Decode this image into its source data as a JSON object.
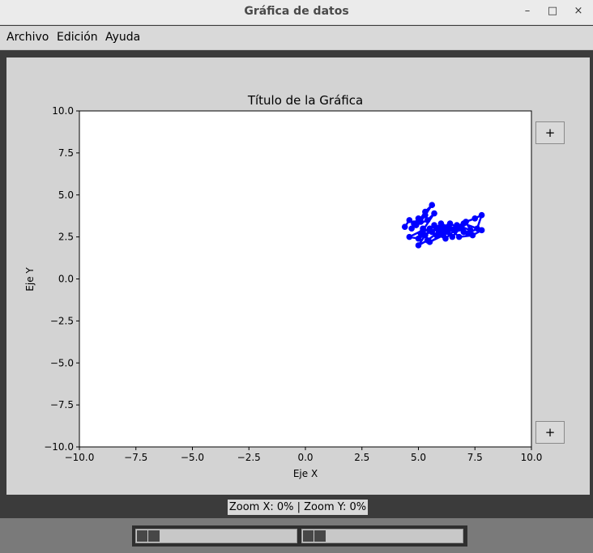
{
  "window": {
    "title": "Gráfica de datos",
    "controls": {
      "minimize": "–",
      "maximize": "□",
      "close": "×"
    }
  },
  "menu": [
    {
      "label": "Archivo"
    },
    {
      "label": "Edición"
    },
    {
      "label": "Ayuda"
    }
  ],
  "side_buttons": {
    "top_label": "+",
    "bottom_label": "+"
  },
  "status": {
    "text": "Zoom X: 0% | Zoom Y: 0%"
  },
  "sliders": [
    {
      "name": "zoom-x",
      "value_percent": 0
    },
    {
      "name": "zoom-y",
      "value_percent": 0
    }
  ],
  "chart_data": {
    "type": "line",
    "title": "Título de la Gráfica",
    "xlabel": "Eje X",
    "ylabel": "Eje Y",
    "xlim": [
      -10,
      10
    ],
    "ylim": [
      -10,
      10
    ],
    "xticks": [
      -10,
      -7.5,
      -5,
      -2.5,
      0,
      2.5,
      5,
      7.5,
      10
    ],
    "yticks": [
      -10,
      -7.5,
      -5,
      -2.5,
      0,
      2.5,
      5,
      7.5,
      10
    ],
    "xtick_labels": [
      "−10.0",
      "−7.5",
      "−5.0",
      "−2.5",
      "0.0",
      "2.5",
      "5.0",
      "7.5",
      "10.0"
    ],
    "ytick_labels": [
      "−10.0",
      "−7.5",
      "−5.0",
      "−2.5",
      "0.0",
      "2.5",
      "5.0",
      "7.5",
      "10.0"
    ],
    "grid": false,
    "series": [
      {
        "color": "#0000ff",
        "marker": "circle",
        "x": [
          4.4,
          4.6,
          4.8,
          5.0,
          4.7,
          5.3,
          5.1,
          5.6,
          5.3,
          4.9,
          5.4,
          5.7,
          5.2,
          4.6,
          5.0,
          5.8,
          6.1,
          5.5,
          6.3,
          6.0,
          6.6,
          6.2,
          5.9,
          6.8,
          6.4,
          7.0,
          6.7,
          7.3,
          7.1,
          7.5,
          7.8,
          7.6,
          7.2,
          6.9,
          6.5,
          6.1,
          5.7,
          5.3,
          5.0,
          5.4,
          5.9,
          6.3,
          6.8,
          7.4,
          7.8,
          7.0,
          6.4,
          5.8,
          5.2,
          5.6,
          6.0,
          5.5,
          5.1
        ],
        "y": [
          3.1,
          3.5,
          3.3,
          3.6,
          3.0,
          3.8,
          3.4,
          4.4,
          4.0,
          3.2,
          3.5,
          3.9,
          2.9,
          2.5,
          2.4,
          3.0,
          2.6,
          2.2,
          2.8,
          3.3,
          2.9,
          2.4,
          2.7,
          3.0,
          3.3,
          2.8,
          3.2,
          2.9,
          3.4,
          3.6,
          3.8,
          3.0,
          2.7,
          3.1,
          2.5,
          2.9,
          3.2,
          2.6,
          2.0,
          2.3,
          2.8,
          3.1,
          2.5,
          2.6,
          2.9,
          3.3,
          3.0,
          2.6,
          3.0,
          2.8,
          3.2,
          3.0,
          2.7
        ]
      }
    ]
  }
}
